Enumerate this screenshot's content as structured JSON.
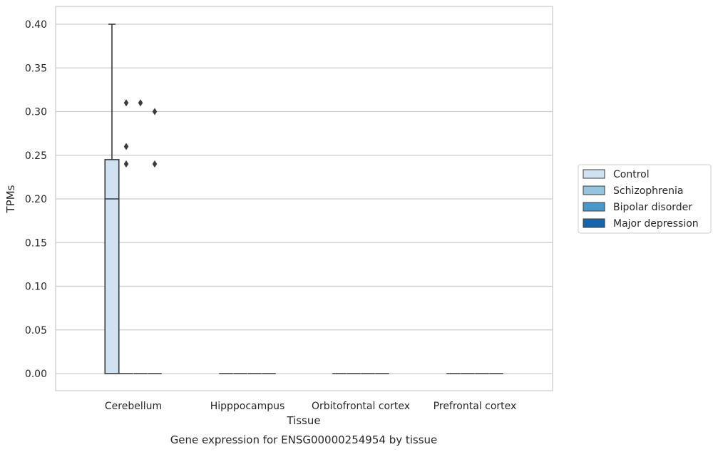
{
  "chart_data": {
    "type": "box",
    "title": "",
    "caption": "Gene expression for ENSG00000254954 by tissue",
    "xlabel": "Tissue",
    "ylabel": "TPMs",
    "ylim": [
      -0.02,
      0.42
    ],
    "yticks": [
      "0.00",
      "0.05",
      "0.10",
      "0.15",
      "0.20",
      "0.25",
      "0.30",
      "0.35",
      "0.40"
    ],
    "grid": true,
    "legend_position": "right",
    "categories": [
      "Cerebellum",
      "Hipppocampus",
      "Orbitofrontal cortex",
      "Prefrontal cortex"
    ],
    "series": [
      {
        "name": "Control",
        "color": "#d0e1f2",
        "boxes": [
          {
            "min": 0.0,
            "q1": 0.0,
            "median": 0.2,
            "q3": 0.245,
            "max": 0.4,
            "outliers": []
          },
          {
            "min": 0,
            "q1": 0,
            "median": 0,
            "q3": 0,
            "max": 0,
            "outliers": []
          },
          {
            "min": 0,
            "q1": 0,
            "median": 0,
            "q3": 0,
            "max": 0,
            "outliers": []
          },
          {
            "min": 0,
            "q1": 0,
            "median": 0,
            "q3": 0,
            "max": 0,
            "outliers": []
          }
        ]
      },
      {
        "name": "Schizophrenia",
        "color": "#94c4df",
        "boxes": [
          {
            "min": 0,
            "q1": 0,
            "median": 0,
            "q3": 0,
            "max": 0,
            "outliers": [
              0.24,
              0.26,
              0.31
            ]
          },
          {
            "min": 0,
            "q1": 0,
            "median": 0,
            "q3": 0,
            "max": 0,
            "outliers": []
          },
          {
            "min": 0,
            "q1": 0,
            "median": 0,
            "q3": 0,
            "max": 0,
            "outliers": []
          },
          {
            "min": 0,
            "q1": 0,
            "median": 0,
            "q3": 0,
            "max": 0,
            "outliers": []
          }
        ]
      },
      {
        "name": "Bipolar disorder",
        "color": "#4a98c9",
        "boxes": [
          {
            "min": 0,
            "q1": 0,
            "median": 0,
            "q3": 0,
            "max": 0,
            "outliers": [
              0.31
            ]
          },
          {
            "min": 0,
            "q1": 0,
            "median": 0,
            "q3": 0,
            "max": 0,
            "outliers": []
          },
          {
            "min": 0,
            "q1": 0,
            "median": 0,
            "q3": 0,
            "max": 0,
            "outliers": []
          },
          {
            "min": 0,
            "q1": 0,
            "median": 0,
            "q3": 0,
            "max": 0,
            "outliers": []
          }
        ]
      },
      {
        "name": "Major depression",
        "color": "#1764ab",
        "boxes": [
          {
            "min": 0,
            "q1": 0,
            "median": 0,
            "q3": 0,
            "max": 0,
            "outliers": [
              0.24,
              0.3
            ]
          },
          {
            "min": 0,
            "q1": 0,
            "median": 0,
            "q3": 0,
            "max": 0,
            "outliers": []
          },
          {
            "min": 0,
            "q1": 0,
            "median": 0,
            "q3": 0,
            "max": 0,
            "outliers": []
          },
          {
            "min": 0,
            "q1": 0,
            "median": 0,
            "q3": 0,
            "max": 0,
            "outliers": []
          }
        ]
      }
    ]
  }
}
